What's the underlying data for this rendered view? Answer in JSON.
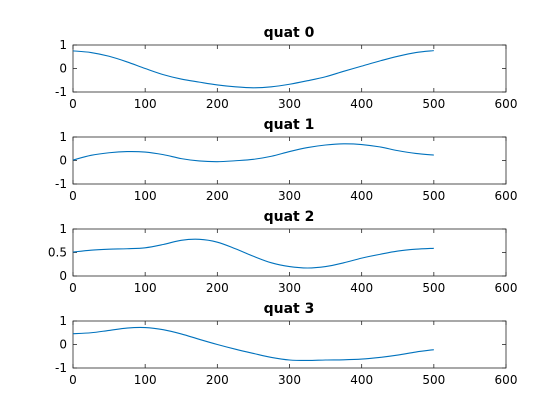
{
  "figure": {
    "background": "#ffffff",
    "axis_color": "#262626",
    "line_color": "#0072BD"
  },
  "chart_data": [
    {
      "type": "line",
      "title": "quat 0",
      "xlim": [
        0,
        600
      ],
      "ylim": [
        -1,
        1
      ],
      "xticks": [
        0,
        100,
        200,
        300,
        400,
        500,
        600
      ],
      "yticks": [
        -1,
        0,
        1
      ],
      "xtick_labels": [
        "0",
        "100",
        "200",
        "300",
        "400",
        "500",
        "600"
      ],
      "ytick_labels": [
        "-1",
        "0",
        "1"
      ],
      "grid": false,
      "series": [
        {
          "color": "#0072BD",
          "x": [
            0,
            25,
            50,
            75,
            100,
            125,
            150,
            175,
            200,
            225,
            250,
            275,
            300,
            325,
            350,
            375,
            400,
            425,
            450,
            475,
            500
          ],
          "y": [
            0.75,
            0.68,
            0.52,
            0.28,
            0.0,
            -0.26,
            -0.45,
            -0.58,
            -0.7,
            -0.78,
            -0.82,
            -0.78,
            -0.67,
            -0.52,
            -0.35,
            -0.12,
            0.1,
            0.32,
            0.52,
            0.68,
            0.76
          ]
        }
      ]
    },
    {
      "type": "line",
      "title": "quat 1",
      "xlim": [
        0,
        600
      ],
      "ylim": [
        -1,
        1
      ],
      "xticks": [
        0,
        100,
        200,
        300,
        400,
        500,
        600
      ],
      "yticks": [
        -1,
        0,
        1
      ],
      "xtick_labels": [
        "0",
        "100",
        "200",
        "300",
        "400",
        "500",
        "600"
      ],
      "ytick_labels": [
        "-1",
        "0",
        "1"
      ],
      "grid": false,
      "series": [
        {
          "color": "#0072BD",
          "x": [
            0,
            25,
            50,
            75,
            100,
            125,
            150,
            175,
            200,
            225,
            250,
            275,
            300,
            325,
            350,
            375,
            400,
            425,
            450,
            475,
            500
          ],
          "y": [
            0.02,
            0.22,
            0.33,
            0.38,
            0.36,
            0.25,
            0.08,
            -0.02,
            -0.05,
            -0.01,
            0.05,
            0.18,
            0.38,
            0.55,
            0.66,
            0.71,
            0.68,
            0.58,
            0.42,
            0.3,
            0.23
          ]
        }
      ]
    },
    {
      "type": "line",
      "title": "quat 2",
      "xlim": [
        0,
        600
      ],
      "ylim": [
        0,
        1
      ],
      "xticks": [
        0,
        100,
        200,
        300,
        400,
        500,
        600
      ],
      "yticks": [
        0,
        0.5,
        1
      ],
      "xtick_labels": [
        "0",
        "100",
        "200",
        "300",
        "400",
        "500",
        "600"
      ],
      "ytick_labels": [
        "0",
        "0.5",
        "1"
      ],
      "grid": false,
      "series": [
        {
          "color": "#0072BD",
          "x": [
            0,
            25,
            50,
            75,
            100,
            125,
            150,
            175,
            200,
            225,
            250,
            275,
            300,
            325,
            350,
            375,
            400,
            425,
            450,
            475,
            500
          ],
          "y": [
            0.51,
            0.55,
            0.57,
            0.58,
            0.6,
            0.67,
            0.76,
            0.78,
            0.72,
            0.58,
            0.42,
            0.28,
            0.2,
            0.17,
            0.2,
            0.28,
            0.38,
            0.46,
            0.53,
            0.57,
            0.59
          ]
        }
      ]
    },
    {
      "type": "line",
      "title": "quat 3",
      "xlim": [
        0,
        600
      ],
      "ylim": [
        -1,
        1
      ],
      "xticks": [
        0,
        100,
        200,
        300,
        400,
        500,
        600
      ],
      "yticks": [
        -1,
        0,
        1
      ],
      "xtick_labels": [
        "0",
        "100",
        "200",
        "300",
        "400",
        "500",
        "600"
      ],
      "ytick_labels": [
        "-1",
        "0",
        "1"
      ],
      "grid": false,
      "series": [
        {
          "color": "#0072BD",
          "x": [
            0,
            25,
            50,
            75,
            100,
            125,
            150,
            175,
            200,
            225,
            250,
            275,
            300,
            325,
            350,
            375,
            400,
            425,
            450,
            475,
            500
          ],
          "y": [
            0.46,
            0.5,
            0.6,
            0.7,
            0.72,
            0.63,
            0.45,
            0.22,
            0.0,
            -0.2,
            -0.38,
            -0.55,
            -0.66,
            -0.68,
            -0.66,
            -0.65,
            -0.62,
            -0.55,
            -0.45,
            -0.32,
            -0.22
          ]
        }
      ]
    }
  ]
}
